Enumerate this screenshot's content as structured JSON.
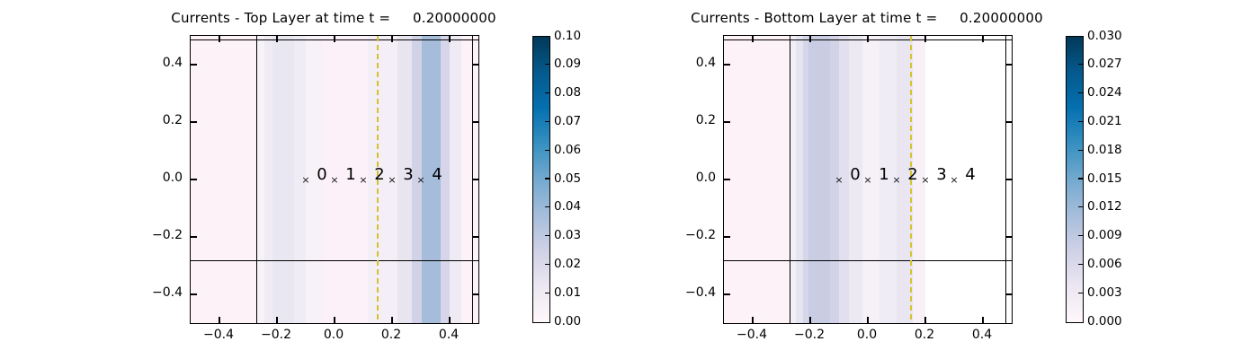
{
  "figure": {
    "background": "#ffffff",
    "text_color": "#000000"
  },
  "chart_data": [
    {
      "type": "heatmap",
      "title": "Currents - Top Layer at time t =     0.20000000",
      "xlim": [
        -0.5,
        0.5
      ],
      "ylim": [
        -0.5,
        0.5
      ],
      "xticks": [
        -0.4,
        -0.2,
        0.0,
        0.2,
        0.4
      ],
      "xtick_labels": [
        "−0.4",
        "−0.2",
        "0.0",
        "0.2",
        "0.4"
      ],
      "yticks": [
        0.4,
        0.2,
        0.0,
        -0.2,
        -0.4
      ],
      "ytick_labels": [
        "0.4",
        "0.2",
        "0.0",
        "−0.2",
        "−0.4"
      ],
      "bands": [
        [
          -0.5,
          -0.272,
          "#fdf2f8"
        ],
        [
          -0.272,
          -0.245,
          "#f7f1f8"
        ],
        [
          -0.245,
          -0.215,
          "#efecf5"
        ],
        [
          -0.215,
          -0.14,
          "#e9e7f2"
        ],
        [
          -0.14,
          -0.1,
          "#efecf5"
        ],
        [
          -0.1,
          -0.045,
          "#f7f1f8"
        ],
        [
          -0.045,
          0.115,
          "#fcf1f8"
        ],
        [
          0.115,
          0.22,
          "#f4eef6"
        ],
        [
          0.22,
          0.27,
          "#e8e5f1"
        ],
        [
          0.27,
          0.303,
          "#d0d2e6"
        ],
        [
          0.303,
          0.368,
          "#a5bcdb"
        ],
        [
          0.368,
          0.4,
          "#d6d5e9"
        ],
        [
          0.4,
          0.44,
          "#eeebf4"
        ],
        [
          0.44,
          0.5,
          "#fdf2f8"
        ]
      ],
      "patch_lines": {
        "vertical": [
          -0.27,
          0.48
        ],
        "horizontal": [
          -0.283,
          0.486
        ]
      },
      "transect_line": {
        "x": 0.15,
        "color": "#d3c42b",
        "style": "dashed"
      },
      "gauge_marker": "×",
      "gauges": [
        {
          "x": -0.1,
          "y": 0.0,
          "label": "0"
        },
        {
          "x": 0.0,
          "y": 0.0,
          "label": "1"
        },
        {
          "x": 0.1,
          "y": 0.0,
          "label": "2"
        },
        {
          "x": 0.2,
          "y": 0.0,
          "label": "3"
        },
        {
          "x": 0.3,
          "y": 0.0,
          "label": "4"
        }
      ],
      "colorbar": {
        "min": 0.0,
        "max": 0.1,
        "tick_labels_top_to_bottom": [
          "0.10",
          "0.09",
          "0.08",
          "0.07",
          "0.06",
          "0.05",
          "0.04",
          "0.03",
          "0.02",
          "0.01",
          "0.00"
        ],
        "colormap": "PuBu",
        "stops_bottom_to_top": [
          "#fff7fb",
          "#ece7f2",
          "#d0d1e6",
          "#a6bddb",
          "#74a9cf",
          "#3690c0",
          "#0570b0",
          "#045a8d",
          "#023858"
        ]
      }
    },
    {
      "type": "heatmap",
      "title": "Currents - Bottom Layer at time t =     0.20000000",
      "xlim": [
        -0.5,
        0.5
      ],
      "ylim": [
        -0.5,
        0.5
      ],
      "xticks": [
        -0.4,
        -0.2,
        0.0,
        0.2,
        0.4
      ],
      "xtick_labels": [
        "−0.4",
        "−0.2",
        "0.0",
        "0.2",
        "0.4"
      ],
      "yticks": [
        0.4,
        0.2,
        0.0,
        -0.2,
        -0.4
      ],
      "ytick_labels": [
        "0.4",
        "0.2",
        "0.0",
        "−0.2",
        "−0.4"
      ],
      "bands": [
        [
          -0.5,
          -0.273,
          "#fdf2f8"
        ],
        [
          -0.273,
          -0.25,
          "#f3eff7"
        ],
        [
          -0.25,
          -0.225,
          "#e6e4f1"
        ],
        [
          -0.225,
          -0.205,
          "#d5d6e9"
        ],
        [
          -0.205,
          -0.13,
          "#c9cde4"
        ],
        [
          -0.13,
          -0.1,
          "#d2d3e7"
        ],
        [
          -0.1,
          -0.065,
          "#e2e0ee"
        ],
        [
          -0.065,
          -0.02,
          "#ece9f3"
        ],
        [
          -0.02,
          0.04,
          "#f6f0f7"
        ],
        [
          0.04,
          0.1,
          "#efecf5"
        ],
        [
          0.1,
          0.155,
          "#e9e6f2"
        ],
        [
          0.155,
          0.2,
          "#f7f0f7"
        ],
        [
          0.2,
          0.5,
          "#ffffff"
        ]
      ],
      "patch_lines": {
        "vertical": [
          -0.27,
          0.48
        ],
        "horizontal": [
          -0.283,
          0.486
        ]
      },
      "transect_line": {
        "x": 0.15,
        "color": "#d3c42b",
        "style": "dashed"
      },
      "gauge_marker": "×",
      "gauges": [
        {
          "x": -0.1,
          "y": 0.0,
          "label": "0"
        },
        {
          "x": 0.0,
          "y": 0.0,
          "label": "1"
        },
        {
          "x": 0.1,
          "y": 0.0,
          "label": "2"
        },
        {
          "x": 0.2,
          "y": 0.0,
          "label": "3"
        },
        {
          "x": 0.3,
          "y": 0.0,
          "label": "4"
        }
      ],
      "colorbar": {
        "min": 0.0,
        "max": 0.03,
        "tick_labels_top_to_bottom": [
          "0.030",
          "0.027",
          "0.024",
          "0.021",
          "0.018",
          "0.015",
          "0.012",
          "0.009",
          "0.006",
          "0.003",
          "0.000"
        ],
        "colormap": "PuBu",
        "stops_bottom_to_top": [
          "#fff7fb",
          "#ece7f2",
          "#d0d1e6",
          "#a6bddb",
          "#74a9cf",
          "#3690c0",
          "#0570b0",
          "#045a8d",
          "#023858"
        ]
      }
    }
  ]
}
